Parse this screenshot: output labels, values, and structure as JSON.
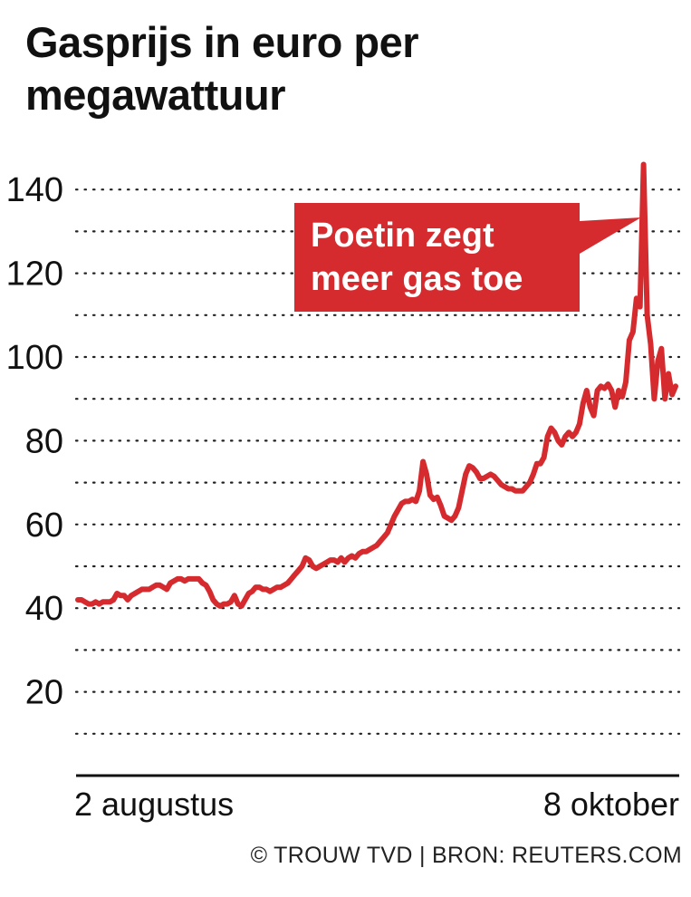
{
  "title": "Gasprijs in euro per megawattuur",
  "source": "© TROUW TVD | BRON: REUTERS.COM",
  "colors": {
    "line": "#d62b2e",
    "annotation_bg": "#d62b2e",
    "annotation_text": "#ffffff",
    "grid": "#222222",
    "axis": "#111111"
  },
  "chart_data": {
    "type": "line",
    "title": "Gasprijs in euro per megawattuur",
    "xlabel": "",
    "ylabel": "",
    "ylim": [
      0,
      150
    ],
    "yticks": [
      20,
      40,
      60,
      80,
      100,
      120,
      140
    ],
    "ytick_labels": [
      "20",
      "40",
      "60",
      "80",
      "100",
      "120",
      "140"
    ],
    "xtick_labels": [
      "2 augustus",
      "8 oktober"
    ],
    "grid": "dotted horizontal lines every 10",
    "annotation": {
      "lines": [
        "Poetin zegt",
        "meer gas toe"
      ]
    },
    "series": [
      {
        "values": [
          42.0,
          42.0,
          41.5,
          41.0,
          41.0,
          41.5,
          41.0,
          41.5,
          41.5,
          41.5,
          42.0,
          43.5,
          43.0,
          43.0,
          42.0,
          43.0,
          43.5,
          44.0,
          44.5,
          44.5,
          44.5,
          45.0,
          45.5,
          45.5,
          45.0,
          44.5,
          46.0,
          46.5,
          47.0,
          47.0,
          46.5,
          47.0,
          47.0,
          47.0,
          47.0,
          46.0,
          45.5,
          44.0,
          42.0,
          41.0,
          40.5,
          41.0,
          41.0,
          41.5,
          43.0,
          41.0,
          40.5,
          42.0,
          43.5,
          44.0,
          45.0,
          45.0,
          44.5,
          44.5,
          44.0,
          44.5,
          45.0,
          45.0,
          45.5,
          46.0,
          47.0,
          48.0,
          49.0,
          50.0,
          52.0,
          51.5,
          50.0,
          49.5,
          50.0,
          50.5,
          51.0,
          51.5,
          51.5,
          51.0,
          52.0,
          51.0,
          52.0,
          52.5,
          52.0,
          53.0,
          53.5,
          53.5,
          54.0,
          54.5,
          55.0,
          56.0,
          57.0,
          58.0,
          60.0,
          62.0,
          63.5,
          65.0,
          65.5,
          65.5,
          66.0,
          65.5,
          68.0,
          75.0,
          72.0,
          67.0,
          66.0,
          66.5,
          64.5,
          62.0,
          61.5,
          61.0,
          62.0,
          64.0,
          68.0,
          72.0,
          74.0,
          73.5,
          72.5,
          71.0,
          71.0,
          71.5,
          72.0,
          71.5,
          70.5,
          69.5,
          69.0,
          68.5,
          68.5,
          68.0,
          68.0,
          68.0,
          69.0,
          70.0,
          72.0,
          74.5,
          74.5,
          76.0,
          81.0,
          83.0,
          82.0,
          80.0,
          79.0,
          81.0,
          82.0,
          81.0,
          82.0,
          84.0,
          89.0,
          92.0,
          88.0,
          86.0,
          92.0,
          93.0,
          92.5,
          93.5,
          92.0,
          88.0,
          92.0,
          90.5,
          94.0,
          104.0,
          106.0,
          114.0,
          112.0,
          146.0,
          110.0,
          103.0,
          90.0,
          99.0,
          102.0,
          90.0,
          96.0,
          91.0,
          93.0
        ]
      }
    ]
  }
}
